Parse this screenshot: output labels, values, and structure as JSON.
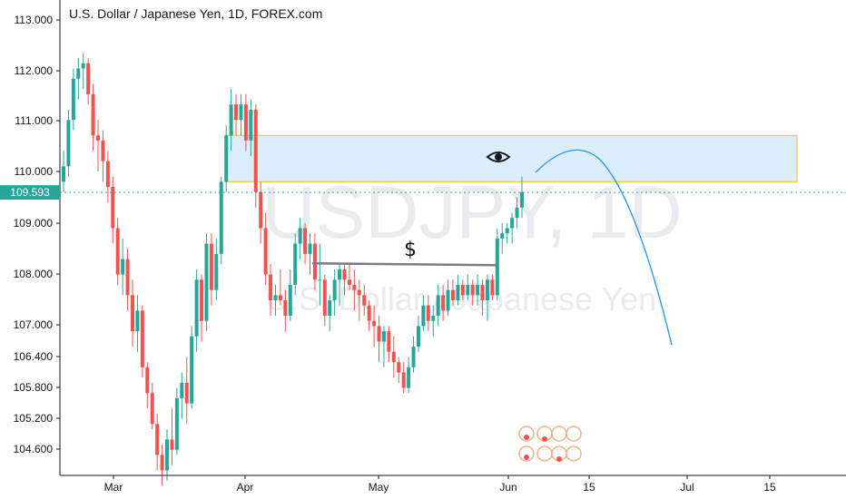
{
  "header": {
    "title": "U.S. Dollar / Japanese Yen, 1D, FOREX.com"
  },
  "watermark": {
    "symbol": "USDJPY, 1D",
    "name": "U.S. Dollar / Japanese Yen"
  },
  "price_tag": {
    "value": "109.593",
    "color": "#26a69a"
  },
  "annotations": {
    "level_symbol": "$",
    "watch_icon": "eye-icon"
  },
  "colors": {
    "up": "#26a69a",
    "down": "#ef5350",
    "zone_fill": "#d6eaf8",
    "zone_border": "#e6c629",
    "projection": "#2196f3",
    "level_line": "#787b86"
  },
  "chart_data": {
    "type": "candlestick",
    "title": "U.S. Dollar / Japanese Yen, 1D, FOREX.com",
    "ylim": [
      104.0,
      113.3
    ],
    "y_ticks": [
      "113.000",
      "112.000",
      "111.000",
      "110.000",
      "109.000",
      "108.000",
      "107.000",
      "106.400",
      "105.800",
      "105.200",
      "104.600"
    ],
    "x_ticks": [
      "Mar",
      "Apr",
      "May",
      "Jun",
      "15",
      "Jul",
      "15"
    ],
    "last_price": 109.593,
    "supply_zone": {
      "from": 109.8,
      "to": 110.7
    },
    "support_level": 108.2,
    "candles_ohlc": [
      [
        109.8,
        110.4,
        109.6,
        110.1
      ],
      [
        110.1,
        111.2,
        109.9,
        111.0
      ],
      [
        111.0,
        112.0,
        110.8,
        111.8
      ],
      [
        111.8,
        112.2,
        111.4,
        112.0
      ],
      [
        112.0,
        112.3,
        111.6,
        112.1
      ],
      [
        112.1,
        112.2,
        111.3,
        111.5
      ],
      [
        111.5,
        111.7,
        110.4,
        110.7
      ],
      [
        110.7,
        111.0,
        110.0,
        110.6
      ],
      [
        110.6,
        110.8,
        109.8,
        110.2
      ],
      [
        110.2,
        110.4,
        109.4,
        109.7
      ],
      [
        109.7,
        109.9,
        108.6,
        108.9
      ],
      [
        108.9,
        109.1,
        107.8,
        108.0
      ],
      [
        108.0,
        108.7,
        107.6,
        108.3
      ],
      [
        108.3,
        108.5,
        107.3,
        107.6
      ],
      [
        107.6,
        107.9,
        106.6,
        106.9
      ],
      [
        106.9,
        107.6,
        106.5,
        107.3
      ],
      [
        107.3,
        107.4,
        106.0,
        106.2
      ],
      [
        106.2,
        106.3,
        105.4,
        105.7
      ],
      [
        105.7,
        105.9,
        105.0,
        105.1
      ],
      [
        105.1,
        105.3,
        104.2,
        104.5
      ],
      [
        104.5,
        104.7,
        103.9,
        104.2
      ],
      [
        104.2,
        105.0,
        104.0,
        104.8
      ],
      [
        104.8,
        105.4,
        104.3,
        104.6
      ],
      [
        104.6,
        105.8,
        104.5,
        105.6
      ],
      [
        105.6,
        106.1,
        105.2,
        105.9
      ],
      [
        105.9,
        106.4,
        105.1,
        105.5
      ],
      [
        105.5,
        107.0,
        105.4,
        106.8
      ],
      [
        106.8,
        108.1,
        106.5,
        107.9
      ],
      [
        107.9,
        108.0,
        106.7,
        107.1
      ],
      [
        107.1,
        108.8,
        106.9,
        108.6
      ],
      [
        108.6,
        108.8,
        107.4,
        107.7
      ],
      [
        107.7,
        108.7,
        107.5,
        108.4
      ],
      [
        108.4,
        109.9,
        108.2,
        109.8
      ],
      [
        109.8,
        110.9,
        109.6,
        110.7
      ],
      [
        110.7,
        111.6,
        110.4,
        111.3
      ],
      [
        111.3,
        111.5,
        110.7,
        111.0
      ],
      [
        111.0,
        111.5,
        110.7,
        111.3
      ],
      [
        111.3,
        111.5,
        110.4,
        110.6
      ],
      [
        110.6,
        111.4,
        110.3,
        111.2
      ],
      [
        111.2,
        111.3,
        109.3,
        109.6
      ],
      [
        109.6,
        109.8,
        108.6,
        108.9
      ],
      [
        108.9,
        109.2,
        107.8,
        108.0
      ],
      [
        108.0,
        108.2,
        107.2,
        107.5
      ],
      [
        107.5,
        107.8,
        107.2,
        107.6
      ],
      [
        107.6,
        108.1,
        107.4,
        107.5
      ],
      [
        107.5,
        107.7,
        106.9,
        107.2
      ],
      [
        107.2,
        108.1,
        107.1,
        107.8
      ],
      [
        107.8,
        108.8,
        107.6,
        108.6
      ],
      [
        108.6,
        109.1,
        108.3,
        108.9
      ],
      [
        108.9,
        109.0,
        108.2,
        108.4
      ],
      [
        108.4,
        108.8,
        108.0,
        108.6
      ],
      [
        108.6,
        108.8,
        107.7,
        107.9
      ],
      [
        107.9,
        108.6,
        107.4,
        107.9
      ],
      [
        107.9,
        108.0,
        107.0,
        107.2
      ],
      [
        107.2,
        107.6,
        106.9,
        107.5
      ],
      [
        107.5,
        108.1,
        107.2,
        107.9
      ],
      [
        107.9,
        108.2,
        107.4,
        108.1
      ],
      [
        108.1,
        108.2,
        107.6,
        107.9
      ],
      [
        107.9,
        108.2,
        107.7,
        107.8
      ],
      [
        107.8,
        108.1,
        107.3,
        107.7
      ],
      [
        107.7,
        107.9,
        107.1,
        107.6
      ],
      [
        107.6,
        107.8,
        107.2,
        107.4
      ],
      [
        107.4,
        107.5,
        106.9,
        107.1
      ],
      [
        107.1,
        107.4,
        106.6,
        107.0
      ],
      [
        107.0,
        107.2,
        106.3,
        106.7
      ],
      [
        106.7,
        107.0,
        106.2,
        106.9
      ],
      [
        106.9,
        107.0,
        106.3,
        106.5
      ],
      [
        106.5,
        106.8,
        106.0,
        106.3
      ],
      [
        106.3,
        106.4,
        105.9,
        106.1
      ],
      [
        106.1,
        106.3,
        105.7,
        105.8
      ],
      [
        105.8,
        106.4,
        105.7,
        106.2
      ],
      [
        106.2,
        106.8,
        106.1,
        106.6
      ],
      [
        106.6,
        107.2,
        106.5,
        107.0
      ],
      [
        107.0,
        107.6,
        106.9,
        107.4
      ],
      [
        107.4,
        107.6,
        106.9,
        107.1
      ],
      [
        107.1,
        107.4,
        106.8,
        107.2
      ],
      [
        107.2,
        107.8,
        107.0,
        107.6
      ],
      [
        107.6,
        107.8,
        107.1,
        107.3
      ],
      [
        107.3,
        107.9,
        107.2,
        107.7
      ],
      [
        107.7,
        107.9,
        107.4,
        107.5
      ],
      [
        107.5,
        108.0,
        107.4,
        107.8
      ],
      [
        107.8,
        107.9,
        107.5,
        107.6
      ],
      [
        107.6,
        108.0,
        107.5,
        107.8
      ],
      [
        107.8,
        107.9,
        107.4,
        107.6
      ],
      [
        107.6,
        108.0,
        107.4,
        107.8
      ],
      [
        107.8,
        107.9,
        107.2,
        107.5
      ],
      [
        107.5,
        108.0,
        107.1,
        107.9
      ],
      [
        107.9,
        108.0,
        107.5,
        107.6
      ],
      [
        107.6,
        108.9,
        107.5,
        108.7
      ],
      [
        108.7,
        109.0,
        108.4,
        108.8
      ],
      [
        108.8,
        109.0,
        108.6,
        108.9
      ],
      [
        108.9,
        109.2,
        108.6,
        109.1
      ],
      [
        109.1,
        109.5,
        108.9,
        109.3
      ],
      [
        109.3,
        109.9,
        109.1,
        109.6
      ]
    ],
    "projection": "arc rising from the zone then falling toward 106.7"
  }
}
